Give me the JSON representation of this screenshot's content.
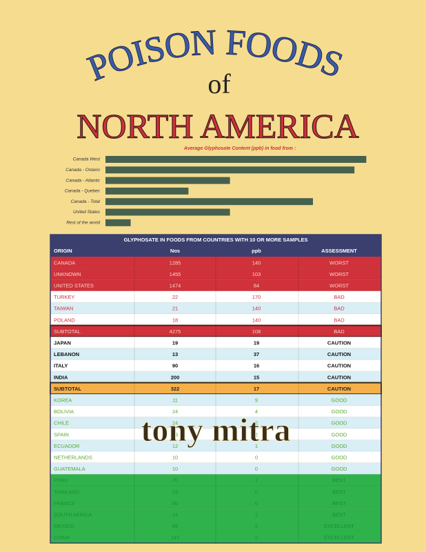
{
  "title": {
    "line1": "POISON FOODS",
    "line2": "of",
    "line3": "NORTH AMERICA"
  },
  "chart_data": {
    "type": "bar",
    "orientation": "horizontal",
    "title": "Average Glyphosate Content (ppb) in food from :",
    "categories": [
      "Canada West",
      "Canada - Ontario",
      "Canada - Atlantic",
      "Canada - Quebec",
      "Canada - Total",
      "United States",
      "Rest of the world"
    ],
    "values": [
      176,
      168,
      84,
      56,
      140,
      84,
      17
    ],
    "color": "#46614f",
    "xlim": [
      0,
      180
    ]
  },
  "table": {
    "title": "GLYPHOSATE IN FOODS FROM COUNTRIES WITH 10 OR MORE SAMPLES",
    "columns": [
      "ORIGIN",
      "Nos",
      "ppb",
      "ASSESSMENT"
    ],
    "rows": [
      [
        "CANADA",
        1285,
        140,
        "WORST"
      ],
      [
        "UNKNOWN",
        1455,
        103,
        "WORST"
      ],
      [
        "UNITED STATES",
        1474,
        84,
        "WORST"
      ],
      [
        "TURKEY",
        22,
        170,
        "BAD"
      ],
      [
        "TAIWAN",
        21,
        140,
        "BAD"
      ],
      [
        "POLAND",
        18,
        140,
        "BAD"
      ],
      [
        "SUBTOTAL",
        4275,
        108,
        "BAD"
      ],
      [
        "JAPAN",
        19,
        19,
        "CAUTION"
      ],
      [
        "LEBANON",
        13,
        37,
        "CAUTION"
      ],
      [
        "ITALY",
        90,
        16,
        "CAUTION"
      ],
      [
        "INDIA",
        200,
        15,
        "CAUTION"
      ],
      [
        "SUBTOTAL",
        322,
        17,
        "CAUTION"
      ],
      [
        "KOREA",
        11,
        9,
        "GOOD"
      ],
      [
        "BOLIVIA",
        24,
        4,
        "GOOD"
      ],
      [
        "CHILE",
        24,
        2,
        "GOOD"
      ],
      [
        "SPAIN",
        13,
        2,
        "GOOD"
      ],
      [
        "ECUADOR",
        12,
        1,
        "GOOD"
      ],
      [
        "NETHERLANDS",
        10,
        0,
        "GOOD"
      ],
      [
        "GUATEMALA",
        10,
        0,
        "GOOD"
      ],
      [
        "PERU",
        70,
        1,
        "BEST"
      ],
      [
        "THAILAND",
        23,
        0,
        "BEST"
      ],
      [
        "FRANCE",
        50,
        0,
        "BEST"
      ],
      [
        "SOUTH AFRICA",
        14,
        1,
        "BEST"
      ],
      [
        "MEXICO",
        99,
        2,
        "EXCELLENT"
      ],
      [
        "CHINA",
        145,
        2,
        "EXCELLENT"
      ]
    ]
  },
  "author": "tony mitra"
}
